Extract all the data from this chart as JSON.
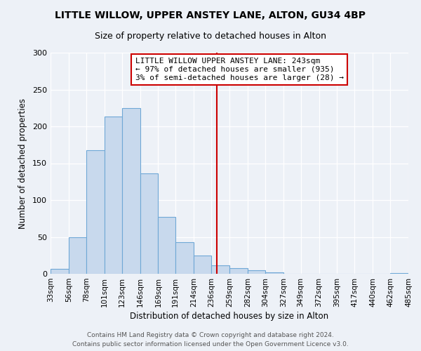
{
  "title": "LITTLE WILLOW, UPPER ANSTEY LANE, ALTON, GU34 4BP",
  "subtitle": "Size of property relative to detached houses in Alton",
  "xlabel": "Distribution of detached houses by size in Alton",
  "ylabel": "Number of detached properties",
  "bin_labels": [
    "33sqm",
    "56sqm",
    "78sqm",
    "101sqm",
    "123sqm",
    "146sqm",
    "169sqm",
    "191sqm",
    "214sqm",
    "236sqm",
    "259sqm",
    "282sqm",
    "304sqm",
    "327sqm",
    "349sqm",
    "372sqm",
    "395sqm",
    "417sqm",
    "440sqm",
    "462sqm",
    "485sqm"
  ],
  "bar_heights": [
    7,
    50,
    168,
    213,
    225,
    136,
    77,
    43,
    25,
    11,
    8,
    5,
    2,
    0,
    0,
    0,
    0,
    0,
    0,
    1
  ],
  "bin_edges": [
    33,
    56,
    78,
    101,
    123,
    146,
    169,
    191,
    214,
    236,
    259,
    282,
    304,
    327,
    349,
    372,
    395,
    417,
    440,
    462,
    485
  ],
  "bar_color": "#c8d9ed",
  "bar_edge_color": "#6fa8d6",
  "property_line_x": 243,
  "property_line_color": "#cc0000",
  "annotation_text": "LITTLE WILLOW UPPER ANSTEY LANE: 243sqm\n← 97% of detached houses are smaller (935)\n3% of semi-detached houses are larger (28) →",
  "annotation_box_color": "#ffffff",
  "annotation_box_edge_color": "#cc0000",
  "ylim": [
    0,
    300
  ],
  "yticks": [
    0,
    50,
    100,
    150,
    200,
    250,
    300
  ],
  "footer_line1": "Contains HM Land Registry data © Crown copyright and database right 2024.",
  "footer_line2": "Contains public sector information licensed under the Open Government Licence v3.0.",
  "background_color": "#edf1f7",
  "plot_bg_color": "#edf1f7",
  "grid_color": "#ffffff",
  "title_fontsize": 10,
  "subtitle_fontsize": 9,
  "annotation_fontsize": 8,
  "footer_fontsize": 6.5,
  "xlabel_fontsize": 8.5,
  "ylabel_fontsize": 8.5,
  "tick_fontsize": 7.5,
  "ytick_fontsize": 8
}
